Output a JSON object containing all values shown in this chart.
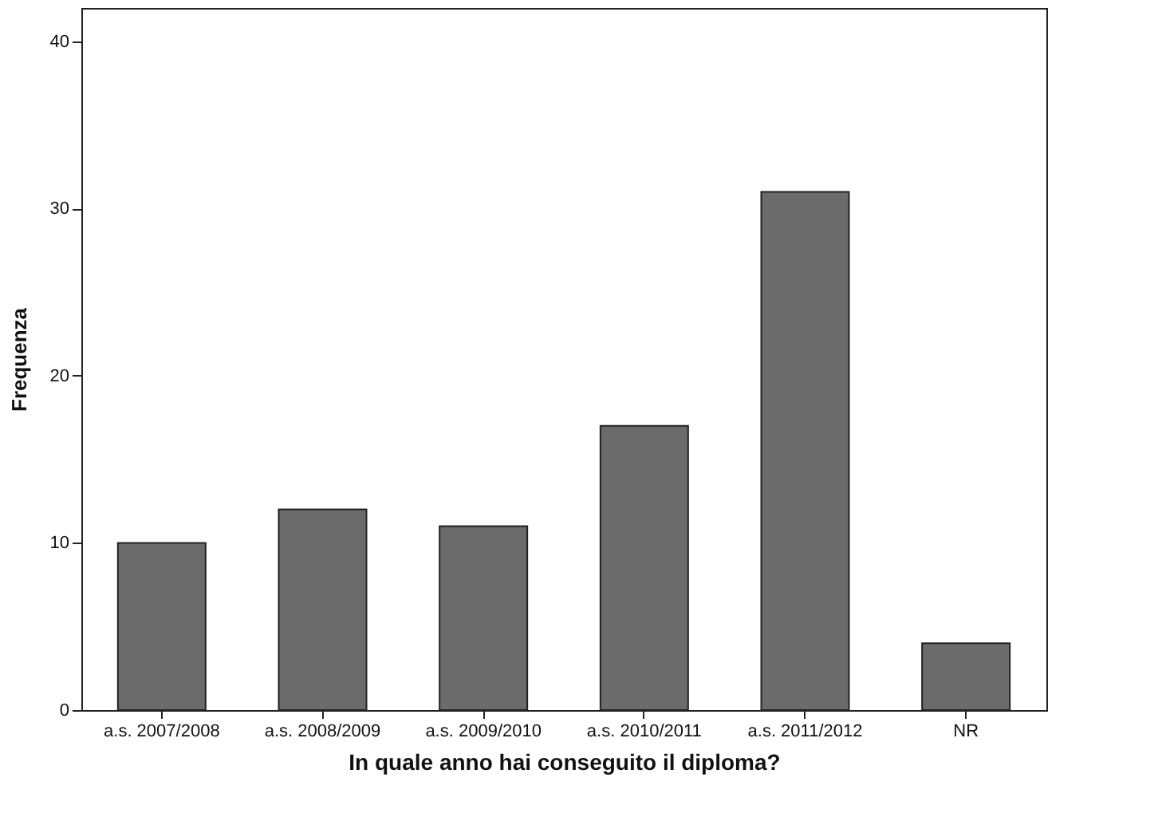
{
  "chart_data": {
    "type": "bar",
    "xlabel": "In quale anno hai conseguito il diploma?",
    "ylabel": "Frequenza",
    "categories": [
      "a.s. 2007/2008",
      "a.s. 2008/2009",
      "a.s. 2009/2010",
      "a.s. 2010/2011",
      "a.s. 2011/2012",
      "NR"
    ],
    "values": [
      10,
      12,
      11,
      17,
      31,
      4
    ],
    "color": "#6b6b6b",
    "ylim": [
      0,
      42
    ],
    "yticks": [
      0,
      10,
      20,
      30,
      40
    ],
    "grid": false
  }
}
